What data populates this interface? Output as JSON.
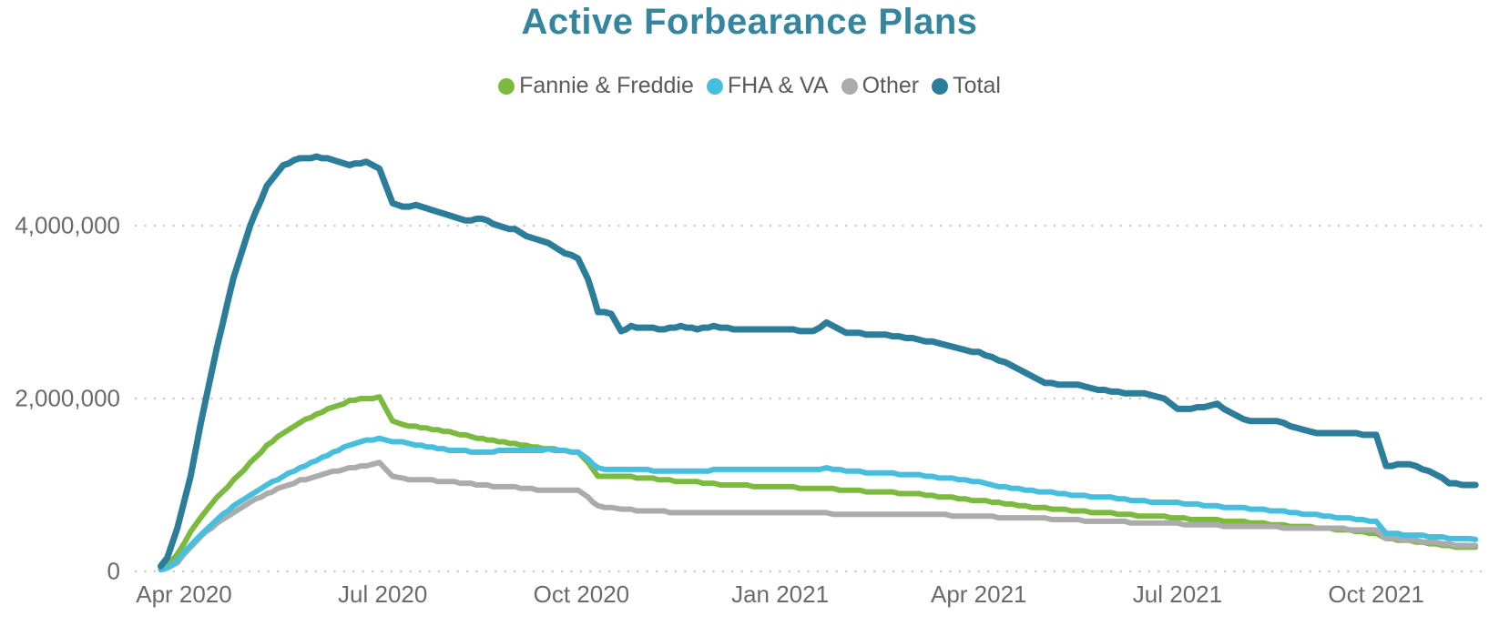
{
  "title": {
    "text": "Active Forbearance Plans",
    "color": "#35859F"
  },
  "legend": {
    "position": "top-center",
    "items": [
      {
        "label": "Fannie & Freddie",
        "color": "#7CBA3F"
      },
      {
        "label": "FHA & VA",
        "color": "#47BEDE"
      },
      {
        "label": "Other",
        "color": "#ABABAB"
      },
      {
        "label": "Total",
        "color": "#2B7D9A"
      }
    ]
  },
  "axes": {
    "y_tick_labels": [
      "0",
      "2,000,000",
      "4,000,000"
    ],
    "y_tick_values": [
      0,
      2000000,
      4000000
    ],
    "x_tick_labels": [
      "Apr 2020",
      "Jul 2020",
      "Oct 2020",
      "Jan 2021",
      "Apr 2021",
      "Jul 2021",
      "Oct 2021"
    ],
    "x_tick_months": [
      0,
      3,
      6,
      9,
      12,
      15,
      18
    ],
    "grid": "dotted horizontal lines at each y tick",
    "text_color": "#6a6a6a"
  },
  "chart_data": {
    "type": "line",
    "title": "Active Forbearance Plans",
    "xlabel": "",
    "ylabel": "",
    "x_unit": "months since 2020-04-01 (data span ~late Mar 2020 to mid Nov 2021)",
    "ylim": [
      0,
      5240000
    ],
    "legend_position": "top",
    "x": [
      -0.35,
      -0.25,
      -0.1,
      0.1,
      0.25,
      0.5,
      0.75,
      1,
      1.25,
      1.5,
      1.75,
      2,
      2.25,
      2.5,
      2.75,
      2.95,
      3.05,
      3.15,
      3.3,
      3.5,
      3.75,
      4,
      4.25,
      4.5,
      4.75,
      5,
      5.25,
      5.5,
      5.75,
      5.95,
      6.1,
      6.25,
      6.45,
      6.6,
      6.75,
      7,
      7.25,
      7.5,
      7.75,
      8,
      8.5,
      9,
      9.5,
      9.7,
      10,
      10.5,
      11,
      11.5,
      12,
      12.5,
      13,
      13.5,
      14,
      14.5,
      14.8,
      15,
      15.3,
      15.6,
      16,
      16.5,
      17,
      17.5,
      18,
      18.15,
      18.5,
      18.9,
      19.1,
      19.3,
      19.5
    ],
    "series": [
      {
        "name": "Fannie & Freddie",
        "color": "#7CBA3F",
        "values": [
          20000,
          60000,
          200000,
          450000,
          620000,
          850000,
          1050000,
          1250000,
          1450000,
          1600000,
          1720000,
          1820000,
          1900000,
          1970000,
          2000000,
          2010000,
          1880000,
          1740000,
          1700000,
          1670000,
          1640000,
          1610000,
          1570000,
          1530000,
          1500000,
          1470000,
          1440000,
          1420000,
          1400000,
          1370000,
          1250000,
          1100000,
          1100000,
          1090000,
          1090000,
          1080000,
          1060000,
          1040000,
          1030000,
          1010000,
          990000,
          980000,
          960000,
          960000,
          940000,
          920000,
          900000,
          860000,
          820000,
          770000,
          730000,
          700000,
          670000,
          640000,
          630000,
          620000,
          600000,
          590000,
          570000,
          540000,
          510000,
          480000,
          440000,
          380000,
          350000,
          310000,
          290000,
          280000,
          280000
        ]
      },
      {
        "name": "FHA & VA",
        "color": "#47BEDE",
        "values": [
          10000,
          40000,
          120000,
          300000,
          420000,
          600000,
          750000,
          880000,
          1000000,
          1100000,
          1200000,
          1280000,
          1380000,
          1460000,
          1520000,
          1530000,
          1520000,
          1500000,
          1490000,
          1460000,
          1430000,
          1400000,
          1390000,
          1380000,
          1390000,
          1400000,
          1390000,
          1410000,
          1390000,
          1370000,
          1300000,
          1190000,
          1180000,
          1170000,
          1170000,
          1170000,
          1160000,
          1160000,
          1160000,
          1170000,
          1170000,
          1170000,
          1180000,
          1190000,
          1160000,
          1140000,
          1120000,
          1080000,
          1030000,
          960000,
          920000,
          880000,
          850000,
          810000,
          800000,
          790000,
          770000,
          750000,
          730000,
          700000,
          660000,
          620000,
          570000,
          440000,
          420000,
          400000,
          380000,
          370000,
          370000
        ]
      },
      {
        "name": "Other",
        "color": "#ABABAB",
        "values": [
          10000,
          30000,
          100000,
          280000,
          400000,
          550000,
          680000,
          800000,
          900000,
          980000,
          1050000,
          1100000,
          1150000,
          1190000,
          1220000,
          1250000,
          1180000,
          1090000,
          1070000,
          1060000,
          1050000,
          1040000,
          1020000,
          1000000,
          980000,
          970000,
          950000,
          940000,
          940000,
          930000,
          850000,
          750000,
          740000,
          720000,
          710000,
          700000,
          690000,
          680000,
          680000,
          680000,
          670000,
          680000,
          670000,
          670000,
          660000,
          660000,
          660000,
          650000,
          640000,
          620000,
          610000,
          590000,
          580000,
          560000,
          550000,
          550000,
          540000,
          530000,
          520000,
          510000,
          500000,
          490000,
          470000,
          380000,
          360000,
          330000,
          310000,
          300000,
          300000
        ]
      },
      {
        "name": "Total",
        "color": "#2B7D9A",
        "values": [
          50000,
          150000,
          500000,
          1100000,
          1700000,
          2600000,
          3400000,
          4000000,
          4450000,
          4700000,
          4780000,
          4790000,
          4760000,
          4700000,
          4740000,
          4650000,
          4450000,
          4250000,
          4220000,
          4230000,
          4180000,
          4120000,
          4050000,
          4080000,
          4000000,
          3950000,
          3850000,
          3790000,
          3680000,
          3620000,
          3380000,
          3000000,
          2980000,
          2780000,
          2830000,
          2820000,
          2800000,
          2840000,
          2800000,
          2830000,
          2790000,
          2800000,
          2780000,
          2870000,
          2760000,
          2740000,
          2700000,
          2620000,
          2530000,
          2380000,
          2180000,
          2150000,
          2080000,
          2050000,
          1990000,
          1870000,
          1890000,
          1930000,
          1750000,
          1740000,
          1610000,
          1600000,
          1580000,
          1220000,
          1240000,
          1120000,
          1020000,
          1000000,
          1000000
        ]
      }
    ]
  },
  "colors": {
    "background": "#ffffff",
    "gridline": "#c9c9c9",
    "title": "#35859F",
    "legend_text": "#5a5a5a",
    "axis_text": "#6a6a6a"
  }
}
